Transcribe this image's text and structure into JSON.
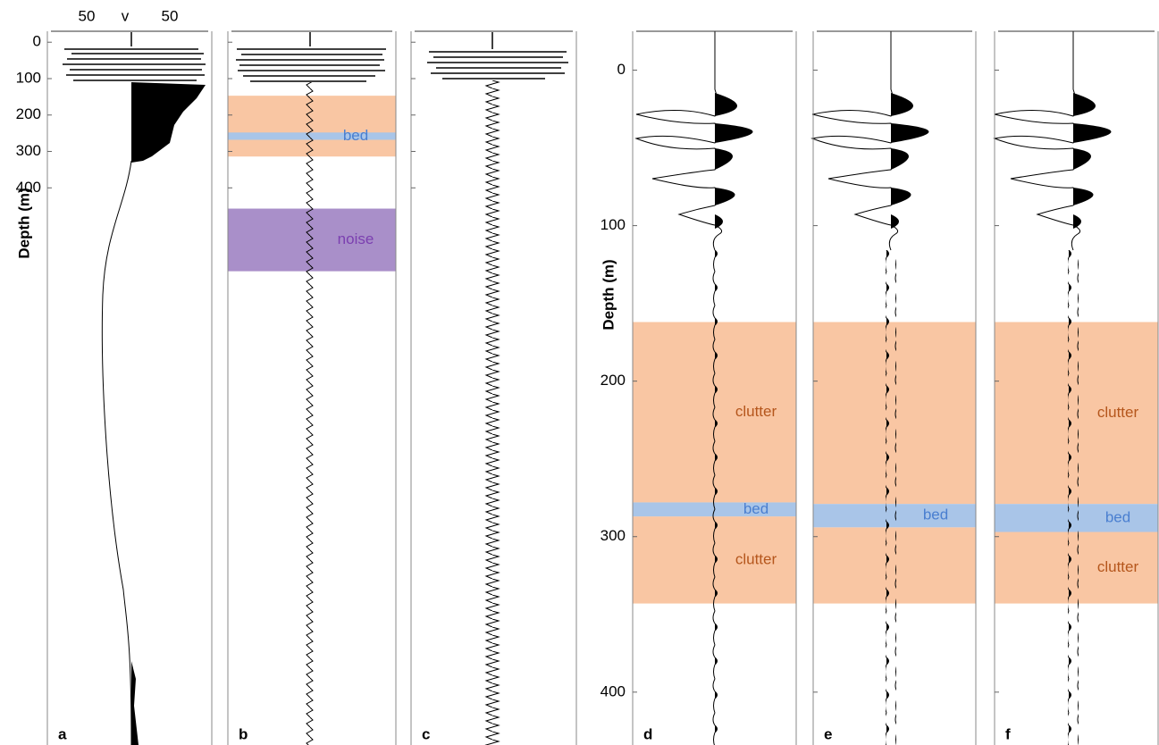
{
  "chart_data": [
    {
      "type": "trace-panels",
      "ylabel": "Depth (m)",
      "top_labels": [
        "50",
        "v",
        "50"
      ],
      "ylim": [
        -30,
        1930
      ],
      "yticks": [
        0,
        100,
        200,
        300,
        400
      ],
      "panels": [
        {
          "label": "a"
        },
        {
          "label": "b",
          "bands": [
            {
              "range": [
                147,
                314
              ],
              "color": "#f9c6a3"
            },
            {
              "range": [
                248,
                268
              ],
              "color": "#a9c5e8",
              "label": "bed",
              "label_color": "#4a7fd0"
            },
            {
              "range": [
                457,
                629
              ],
              "color": "#a98fc9",
              "label": "noise",
              "label_color": "#7b3fb0"
            }
          ]
        },
        {
          "label": "c"
        }
      ]
    },
    {
      "type": "trace-panels",
      "ylabel": "Depth (m)",
      "ylim": [
        -25,
        434
      ],
      "yticks": [
        0,
        100,
        200,
        300,
        400
      ],
      "panels": [
        {
          "label": "d",
          "bands": [
            {
              "range": [
                162,
                278
              ],
              "color": "#f9c6a3",
              "label": "clutter",
              "label_color": "#b5561c"
            },
            {
              "range": [
                287,
                343
              ],
              "color": "#f9c6a3",
              "label": "clutter",
              "label_color": "#b5561c"
            },
            {
              "range": [
                278,
                287
              ],
              "color": "#a9c5e8",
              "label": "bed",
              "label_color": "#4a7fd0"
            }
          ]
        },
        {
          "label": "e",
          "bands": [
            {
              "range": [
                162,
                279
              ],
              "color": "#f9c6a3"
            },
            {
              "range": [
                294,
                343
              ],
              "color": "#f9c6a3"
            },
            {
              "range": [
                279,
                294
              ],
              "color": "#a9c5e8",
              "label": "bed",
              "label_color": "#4a7fd0"
            }
          ]
        },
        {
          "label": "f",
          "bands": [
            {
              "range": [
                162,
                279
              ],
              "color": "#f9c6a3",
              "label": "clutter",
              "label_color": "#b5561c"
            },
            {
              "range": [
                297,
                343
              ],
              "color": "#f9c6a3",
              "label": "clutter",
              "label_color": "#b5561c"
            },
            {
              "range": [
                279,
                297
              ],
              "color": "#a9c5e8",
              "label": "bed",
              "label_color": "#4a7fd0"
            }
          ]
        }
      ]
    }
  ]
}
